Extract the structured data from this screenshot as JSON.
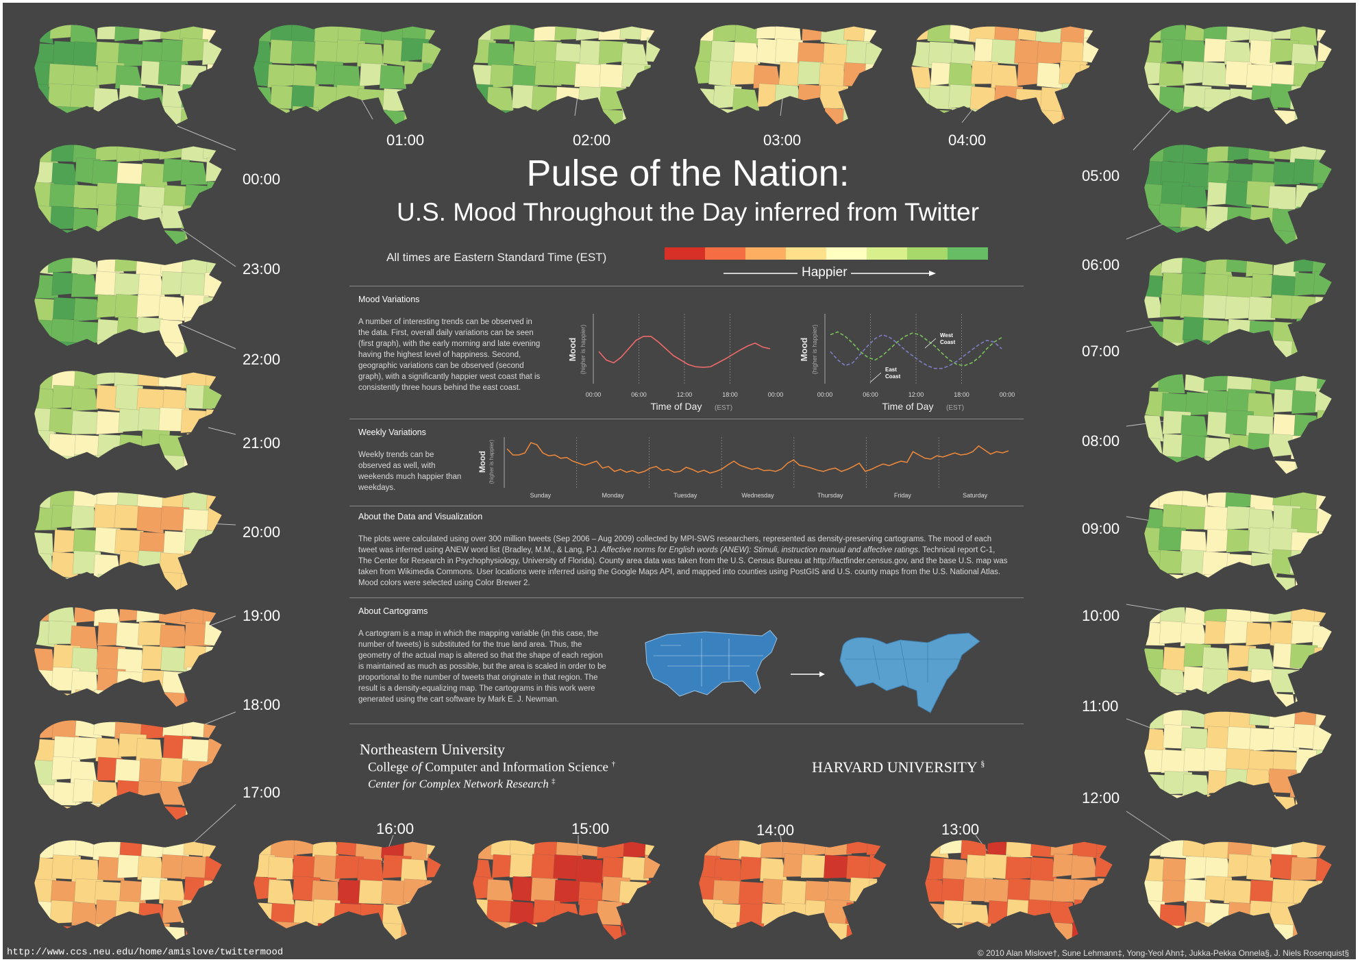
{
  "title": "Pulse of the Nation:",
  "subtitle": "U.S. Mood Throughout the Day inferred from Twitter",
  "time_note": "All times are Eastern Standard Time (EST)",
  "scale": {
    "label": "Happier",
    "colors": [
      "#d73027",
      "#f46d43",
      "#fdae61",
      "#fee08b",
      "#ffffbf",
      "#d9ef8b",
      "#a6d96a",
      "#66bd63"
    ]
  },
  "palette": {
    "background": "#454545",
    "mood_colors": [
      "#d0362a",
      "#e8613b",
      "#f1a060",
      "#fad584",
      "#fbf3b8",
      "#d7e9a0",
      "#a9d26f",
      "#6cb759",
      "#4fa352"
    ]
  },
  "maps": [
    {
      "time": "00:00"
    },
    {
      "time": "01:00"
    },
    {
      "time": "02:00"
    },
    {
      "time": "03:00"
    },
    {
      "time": "04:00"
    },
    {
      "time": "05:00"
    },
    {
      "time": "06:00"
    },
    {
      "time": "07:00"
    },
    {
      "time": "08:00"
    },
    {
      "time": "09:00"
    },
    {
      "time": "10:00"
    },
    {
      "time": "11:00"
    },
    {
      "time": "12:00"
    },
    {
      "time": "13:00"
    },
    {
      "time": "14:00"
    },
    {
      "time": "15:00"
    },
    {
      "time": "16:00"
    },
    {
      "time": "17:00"
    },
    {
      "time": "18:00"
    },
    {
      "time": "19:00"
    },
    {
      "time": "20:00"
    },
    {
      "time": "21:00"
    },
    {
      "time": "22:00"
    },
    {
      "time": "23:00"
    }
  ],
  "sections": {
    "mood": {
      "heading": "Mood Variations",
      "text": "A number of interesting trends can be observed in the data.  First, overall daily variations can be seen (first graph), with the early morning and late evening having the highest level of happiness.  Second, geographic variations can be observed (second graph), with a significantly happier west coast that is consistently three hours behind the east coast."
    },
    "weekly": {
      "heading": "Weekly Variations",
      "text": "Weekly trends can be observed as well, with weekends much happier than weekdays."
    },
    "data": {
      "heading": "About the Data and Visualization",
      "text_1": "The plots were calculated using over 300 million tweets (Sep 2006 – Aug 2009) collected by MPI-SWS researchers, represented as density-preserving cartograms.  The mood of each tweet was inferred using ANEW word list (Bradley, M.M., & Lang, P.J. ",
      "text_italic": "Affective norms for English words (ANEW): Stimuli, instruction manual and affective ratings",
      "text_2": ". Technical report C-1, The Center for Research in Psychophysiology, University of Florida).  County area data was taken from the U.S. Census Bureau at http://factfinder.census.gov, and the base U.S. map was taken from Wikimedia Commons.  User locations were inferred using the Google Maps API, and mapped into counties using PostGIS and U.S. county maps from the U.S. National Atlas.  Mood colors were selected using Color Brewer 2."
    },
    "cartograms": {
      "heading": "About Cartograms",
      "text": "A cartogram is a map in which the mapping variable (in this case, the number of tweets) is substituted for the true land area. Thus, the geometry of the actual map is altered so that the shape of each region is maintained as much as possible, but the area is scaled in order to be proportional to the number of tweets that originate in that region.  The result is a density-equalizing map. The cartograms in this work were generated using the cart software by Mark E. J. Newman."
    }
  },
  "chart_data": [
    {
      "type": "line",
      "ylabel": "Mood",
      "ylabel_sub": "(higher is happier)",
      "xlabel": "Time of Day",
      "xlabel_unit": "(EST)",
      "ticks": [
        "00:00",
        "06:00",
        "12:00",
        "18:00",
        "00:00"
      ],
      "x": [
        0,
        1,
        2,
        3,
        4,
        5,
        6,
        7,
        8,
        9,
        10,
        11,
        12,
        13,
        14,
        15,
        16,
        17,
        18,
        19,
        20,
        21,
        22,
        23
      ],
      "series": [
        {
          "color": "#f06a6a",
          "values": [
            0.45,
            0.3,
            0.25,
            0.35,
            0.5,
            0.65,
            0.72,
            0.72,
            0.62,
            0.5,
            0.38,
            0.3,
            0.22,
            0.18,
            0.17,
            0.18,
            0.25,
            0.32,
            0.4,
            0.48,
            0.55,
            0.6,
            0.53,
            0.5
          ]
        }
      ],
      "ylim": [
        0,
        1
      ]
    },
    {
      "type": "line",
      "ylabel": "Mood",
      "ylabel_sub": "(higher is happier)",
      "xlabel": "Time of Day",
      "xlabel_unit": "(EST)",
      "ticks": [
        "00:00",
        "06:00",
        "12:00",
        "18:00",
        "00:00"
      ],
      "x": [
        0,
        1,
        2,
        3,
        4,
        5,
        6,
        7,
        8,
        9,
        10,
        11,
        12,
        13,
        14,
        15,
        16,
        17,
        18,
        19,
        20,
        21,
        22,
        23
      ],
      "series": [
        {
          "name": "West Coast",
          "color": "#7cc35a",
          "values": [
            0.75,
            0.8,
            0.72,
            0.6,
            0.45,
            0.35,
            0.3,
            0.38,
            0.5,
            0.62,
            0.72,
            0.78,
            0.75,
            0.65,
            0.55,
            0.42,
            0.3,
            0.22,
            0.2,
            0.25,
            0.35,
            0.5,
            0.62,
            0.7
          ]
        },
        {
          "name": "East Coast",
          "color": "#7d80c8",
          "values": [
            0.45,
            0.3,
            0.2,
            0.25,
            0.4,
            0.55,
            0.68,
            0.75,
            0.7,
            0.6,
            0.48,
            0.38,
            0.28,
            0.2,
            0.15,
            0.15,
            0.2,
            0.28,
            0.38,
            0.48,
            0.58,
            0.65,
            0.62,
            0.5
          ]
        }
      ],
      "ylim": [
        0,
        1
      ]
    },
    {
      "type": "line",
      "ylabel": "Mood",
      "ylabel_sub": "(higher is happier)",
      "categories": [
        "Sunday",
        "Monday",
        "Tuesday",
        "Wednesday",
        "Thursday",
        "Friday",
        "Saturday"
      ],
      "x": [
        0,
        2,
        4,
        6,
        8,
        10,
        12,
        14,
        16,
        18,
        20,
        22,
        24,
        26,
        28,
        30,
        32,
        34,
        36,
        38,
        40,
        42,
        44,
        46,
        48,
        50,
        52,
        54,
        56,
        58,
        60,
        62,
        64,
        66,
        68,
        70,
        72,
        74,
        76,
        78,
        80,
        82,
        84,
        86,
        88,
        90,
        92,
        94,
        96,
        98,
        100,
        102,
        104,
        106,
        108,
        110,
        112,
        114,
        116,
        118,
        120,
        122,
        124,
        126,
        128,
        130,
        132,
        134,
        136,
        138,
        140,
        142,
        144,
        146,
        148,
        150,
        152,
        154,
        156,
        158,
        160,
        162,
        164,
        166,
        168
      ],
      "series": [
        {
          "color": "#f28a3c",
          "values": [
            0.85,
            0.7,
            0.7,
            0.75,
            1.0,
            0.95,
            0.75,
            0.68,
            0.7,
            0.62,
            0.64,
            0.55,
            0.5,
            0.45,
            0.5,
            0.55,
            0.38,
            0.42,
            0.3,
            0.35,
            0.28,
            0.32,
            0.26,
            0.3,
            0.38,
            0.42,
            0.32,
            0.35,
            0.28,
            0.3,
            0.4,
            0.35,
            0.28,
            0.33,
            0.26,
            0.3,
            0.36,
            0.46,
            0.55,
            0.45,
            0.4,
            0.35,
            0.38,
            0.32,
            0.33,
            0.3,
            0.36,
            0.5,
            0.58,
            0.45,
            0.42,
            0.38,
            0.33,
            0.3,
            0.35,
            0.38,
            0.3,
            0.35,
            0.42,
            0.5,
            0.3,
            0.35,
            0.42,
            0.48,
            0.44,
            0.5,
            0.55,
            0.52,
            0.78,
            0.7,
            0.62,
            0.6,
            0.68,
            0.65,
            0.7,
            0.75,
            0.7,
            0.72,
            0.78,
            0.92,
            0.82,
            0.72,
            0.78,
            0.75,
            0.8
          ]
        }
      ],
      "ylim": [
        0,
        1
      ]
    }
  ],
  "cartogram_figure": {
    "arrow": "→",
    "map_color": "#3a82bf",
    "cartogram_color": "#5aa0cf"
  },
  "institutions": {
    "neu_name": "Northeastern University",
    "neu_college_1": "College ",
    "neu_college_of": "of",
    "neu_college_2": " Computer and Information Science",
    "neu_college_mark": "†",
    "neu_center": "Center for Complex Network Research",
    "neu_center_mark": "‡",
    "harvard": "HARVARD UNIVERSITY",
    "harvard_mark": "§"
  },
  "footer": {
    "url": "http://www.ccs.neu.edu/home/amislove/twittermood",
    "copyright": "© 2010 Alan Mislove†, Sune Lehmann‡, Yong-Yeol Ahn‡, Jukka-Pekka Onnela§, J. Niels Rosenquist§"
  }
}
